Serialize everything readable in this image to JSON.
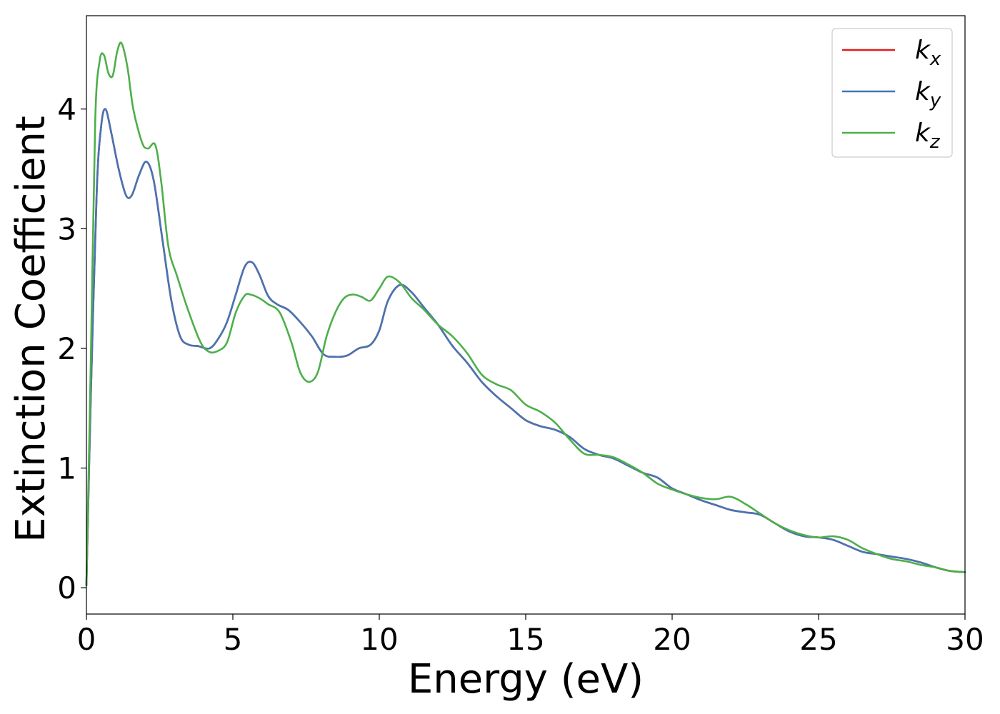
{
  "chart_data": {
    "type": "line",
    "xlabel": "Energy (eV)",
    "ylabel": "Extinction Coefficient",
    "xlim": [
      0,
      30
    ],
    "ylim": [
      -0.22,
      4.78
    ],
    "x_ticks": [
      0,
      5,
      10,
      15,
      20,
      25,
      30
    ],
    "y_ticks": [
      0,
      1,
      2,
      3,
      4
    ],
    "grid": false,
    "legend_position": "top-right",
    "series": [
      {
        "name": "k_x",
        "legend_base": "k",
        "legend_sub": "x",
        "color": "#e41a1c",
        "x": [
          0,
          0.15,
          0.35,
          0.5,
          0.65,
          0.85,
          1.1,
          1.35,
          1.55,
          1.8,
          2.05,
          2.3,
          2.6,
          2.9,
          3.2,
          3.5,
          3.8,
          4.2,
          4.5,
          4.8,
          5.1,
          5.4,
          5.65,
          5.9,
          6.2,
          6.5,
          6.9,
          7.3,
          7.7,
          8.1,
          8.5,
          8.9,
          9.3,
          9.7,
          10.0,
          10.3,
          10.7,
          11.1,
          11.5,
          12.0,
          12.5,
          13.0,
          13.5,
          14.0,
          14.5,
          15.0,
          15.5,
          16.0,
          16.5,
          17.0,
          17.5,
          18.0,
          18.5,
          19.0,
          19.5,
          20.0,
          20.5,
          21.0,
          21.5,
          22.0,
          22.5,
          23.0,
          23.5,
          24.0,
          24.5,
          25.0,
          25.5,
          26.0,
          26.5,
          27.0,
          27.5,
          28.0,
          28.5,
          29.0,
          29.5,
          30.0
        ],
        "values": [
          0.02,
          1.6,
          3.3,
          3.85,
          4.0,
          3.8,
          3.5,
          3.28,
          3.28,
          3.45,
          3.56,
          3.4,
          2.9,
          2.4,
          2.1,
          2.03,
          2.02,
          2.0,
          2.08,
          2.22,
          2.45,
          2.68,
          2.72,
          2.62,
          2.44,
          2.37,
          2.32,
          2.22,
          2.1,
          1.95,
          1.93,
          1.94,
          2.0,
          2.03,
          2.15,
          2.4,
          2.53,
          2.47,
          2.35,
          2.2,
          2.02,
          1.88,
          1.72,
          1.6,
          1.5,
          1.4,
          1.35,
          1.32,
          1.26,
          1.16,
          1.11,
          1.08,
          1.02,
          0.96,
          0.92,
          0.83,
          0.78,
          0.73,
          0.69,
          0.65,
          0.63,
          0.61,
          0.54,
          0.47,
          0.43,
          0.42,
          0.4,
          0.35,
          0.3,
          0.28,
          0.26,
          0.24,
          0.21,
          0.17,
          0.14,
          0.13
        ]
      },
      {
        "name": "k_y",
        "legend_base": "k",
        "legend_sub": "y",
        "color": "#4575b4",
        "x": [
          0,
          0.15,
          0.35,
          0.5,
          0.65,
          0.85,
          1.1,
          1.35,
          1.55,
          1.8,
          2.05,
          2.3,
          2.6,
          2.9,
          3.2,
          3.5,
          3.8,
          4.2,
          4.5,
          4.8,
          5.1,
          5.4,
          5.65,
          5.9,
          6.2,
          6.5,
          6.9,
          7.3,
          7.7,
          8.1,
          8.5,
          8.9,
          9.3,
          9.7,
          10.0,
          10.3,
          10.7,
          11.1,
          11.5,
          12.0,
          12.5,
          13.0,
          13.5,
          14.0,
          14.5,
          15.0,
          15.5,
          16.0,
          16.5,
          17.0,
          17.5,
          18.0,
          18.5,
          19.0,
          19.5,
          20.0,
          20.5,
          21.0,
          21.5,
          22.0,
          22.5,
          23.0,
          23.5,
          24.0,
          24.5,
          25.0,
          25.5,
          26.0,
          26.5,
          27.0,
          27.5,
          28.0,
          28.5,
          29.0,
          29.5,
          30.0
        ],
        "values": [
          0.02,
          1.6,
          3.3,
          3.85,
          4.0,
          3.8,
          3.5,
          3.28,
          3.28,
          3.45,
          3.56,
          3.4,
          2.9,
          2.4,
          2.1,
          2.03,
          2.02,
          2.0,
          2.08,
          2.22,
          2.45,
          2.68,
          2.72,
          2.62,
          2.44,
          2.37,
          2.32,
          2.22,
          2.1,
          1.95,
          1.93,
          1.94,
          2.0,
          2.03,
          2.15,
          2.4,
          2.53,
          2.47,
          2.35,
          2.2,
          2.02,
          1.88,
          1.72,
          1.6,
          1.5,
          1.4,
          1.35,
          1.32,
          1.26,
          1.16,
          1.11,
          1.08,
          1.02,
          0.96,
          0.92,
          0.83,
          0.78,
          0.73,
          0.69,
          0.65,
          0.63,
          0.61,
          0.54,
          0.47,
          0.43,
          0.42,
          0.4,
          0.35,
          0.3,
          0.28,
          0.26,
          0.24,
          0.21,
          0.17,
          0.14,
          0.13
        ]
      },
      {
        "name": "k_z",
        "legend_base": "k",
        "legend_sub": "z",
        "color": "#4daf4a",
        "x": [
          0,
          0.15,
          0.3,
          0.45,
          0.6,
          0.75,
          0.9,
          1.05,
          1.2,
          1.4,
          1.6,
          1.9,
          2.1,
          2.35,
          2.55,
          2.8,
          3.1,
          3.5,
          3.9,
          4.2,
          4.5,
          4.8,
          5.1,
          5.4,
          5.6,
          5.9,
          6.2,
          6.6,
          7.0,
          7.3,
          7.6,
          7.9,
          8.2,
          8.5,
          8.8,
          9.1,
          9.4,
          9.7,
          10.0,
          10.3,
          10.7,
          11.1,
          11.5,
          12.0,
          12.5,
          13.0,
          13.5,
          14.0,
          14.5,
          15.0,
          15.5,
          16.0,
          16.5,
          17.0,
          17.5,
          18.0,
          18.5,
          19.0,
          19.5,
          20.0,
          20.5,
          21.0,
          21.5,
          22.0,
          22.5,
          23.0,
          23.5,
          24.0,
          24.5,
          25.0,
          25.5,
          26.0,
          26.5,
          27.0,
          27.5,
          28.0,
          28.5,
          29.0,
          29.5,
          30.0
        ],
        "values": [
          0.02,
          1.9,
          3.9,
          4.4,
          4.45,
          4.3,
          4.28,
          4.48,
          4.55,
          4.35,
          4.0,
          3.72,
          3.67,
          3.7,
          3.4,
          2.85,
          2.6,
          2.3,
          2.05,
          1.97,
          1.98,
          2.05,
          2.3,
          2.44,
          2.45,
          2.42,
          2.37,
          2.3,
          2.05,
          1.8,
          1.72,
          1.8,
          2.1,
          2.3,
          2.42,
          2.45,
          2.43,
          2.4,
          2.5,
          2.6,
          2.55,
          2.42,
          2.33,
          2.2,
          2.1,
          1.96,
          1.78,
          1.7,
          1.65,
          1.53,
          1.47,
          1.38,
          1.24,
          1.12,
          1.11,
          1.09,
          1.03,
          0.96,
          0.87,
          0.82,
          0.78,
          0.75,
          0.74,
          0.76,
          0.7,
          0.62,
          0.54,
          0.48,
          0.44,
          0.42,
          0.43,
          0.4,
          0.33,
          0.28,
          0.24,
          0.22,
          0.19,
          0.17,
          0.14,
          0.13
        ]
      }
    ]
  }
}
